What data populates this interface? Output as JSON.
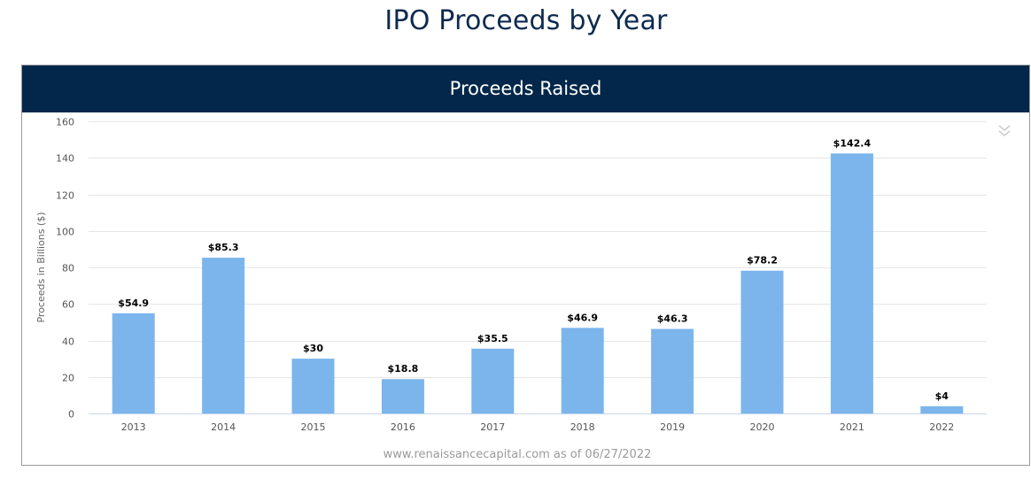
{
  "page": {
    "title": "IPO Proceeds by Year"
  },
  "panel": {
    "header": "Proceeds Raised",
    "menu_icon": "double-chevron-down-icon"
  },
  "colors": {
    "bar": "#7cb5ec",
    "header_bg": "#02274a",
    "title": "#0e2a4f",
    "grid": "#e6e6e6",
    "axis_text": "#555555",
    "credit": "#9a9a9a"
  },
  "chart_data": {
    "type": "bar",
    "title": "Proceeds Raised",
    "xlabel": "",
    "ylabel": "Proceeds in Billions ($)",
    "categories": [
      "2013",
      "2014",
      "2015",
      "2016",
      "2017",
      "2018",
      "2019",
      "2020",
      "2021",
      "2022"
    ],
    "values": [
      54.9,
      85.3,
      30,
      18.8,
      35.5,
      46.9,
      46.3,
      78.2,
      142.4,
      4
    ],
    "data_labels": [
      "$54.9",
      "$85.3",
      "$30",
      "$18.8",
      "$35.5",
      "$46.9",
      "$46.3",
      "$78.2",
      "$142.4",
      "$4"
    ],
    "ylim": [
      0,
      160
    ],
    "yticks": [
      0,
      20,
      40,
      60,
      80,
      100,
      120,
      140,
      160
    ],
    "grid": true,
    "legend": "none",
    "credit": "www.renaissancecapital.com as of 06/27/2022"
  }
}
